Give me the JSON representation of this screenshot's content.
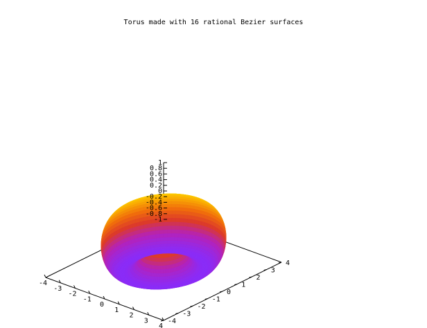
{
  "chart_data": {
    "type": "surface",
    "title": "Torus made with 16 rational Bezier surfaces",
    "surface": "torus",
    "patches": 16,
    "major_radius": 2,
    "minor_radius": 1,
    "x_range": [
      -4,
      4
    ],
    "y_range": [
      -4,
      4
    ],
    "z_range": [
      -1,
      1
    ],
    "x_ticks": [
      -4,
      -3,
      -2,
      -1,
      0,
      1,
      2,
      3,
      4
    ],
    "y_ticks": [
      -4,
      -3,
      -2,
      -1,
      0,
      1,
      2,
      3,
      4
    ],
    "z_ticks": [
      -1,
      -0.8,
      -0.6,
      -0.4,
      -0.2,
      0,
      0.2,
      0.4,
      0.6,
      0.8,
      1
    ],
    "x_tick_labels": [
      "-4",
      "-3",
      "-2",
      "-1",
      "0",
      "1",
      "2",
      "3",
      "4"
    ],
    "y_tick_labels": [
      "-4",
      "-3",
      "-2",
      "-1",
      "0",
      "1",
      "2",
      "3",
      "4"
    ],
    "z_tick_labels": [
      "-1",
      "-0.8",
      "-0.6",
      "-0.4",
      "-0.2",
      "0",
      "0.2",
      "0.4",
      "0.6",
      "0.8",
      "1"
    ],
    "palette": [
      "#8a2cf8",
      "#b522b8",
      "#dc3a2a",
      "#f06d0c",
      "#f9a703",
      "#ffd800"
    ],
    "seam_color": "#5a1aa8",
    "legend": "none",
    "grid": false
  }
}
